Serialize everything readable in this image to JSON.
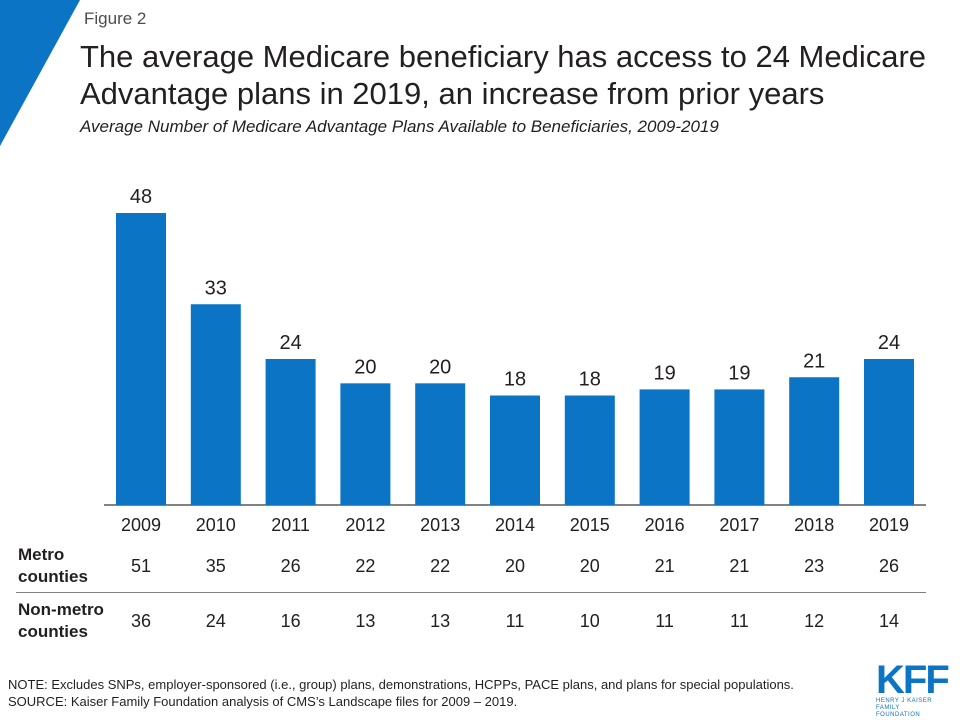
{
  "figure_label": "Figure 2",
  "title": "The average Medicare beneficiary has access to 24 Medicare Advantage plans in 2019, an increase from prior years",
  "subtitle": "Average Number of Medicare Advantage Plans Available to Beneficiaries, 2009-2019",
  "colors": {
    "bar": "#0b74c4",
    "corner": "#0b74c4",
    "axis": "#595959",
    "divider": "#808080"
  },
  "chart_data": {
    "type": "bar",
    "categories": [
      "2009",
      "2010",
      "2011",
      "2012",
      "2013",
      "2014",
      "2015",
      "2016",
      "2017",
      "2018",
      "2019"
    ],
    "values": [
      48,
      33,
      24,
      20,
      20,
      18,
      18,
      19,
      19,
      21,
      24
    ],
    "data_labels": [
      "48",
      "33",
      "24",
      "20",
      "20",
      "18",
      "18",
      "19",
      "19",
      "21",
      "24"
    ],
    "ylim": [
      0,
      48
    ],
    "grid": false,
    "legend": "none"
  },
  "table": {
    "rows": [
      {
        "label_line1": "Metro",
        "label_line2": "counties",
        "values": [
          "51",
          "35",
          "26",
          "22",
          "22",
          "20",
          "20",
          "21",
          "21",
          "23",
          "26"
        ]
      },
      {
        "label_line1": "Non-metro",
        "label_line2": "counties",
        "values": [
          "36",
          "24",
          "16",
          "13",
          "13",
          "11",
          "10",
          "11",
          "11",
          "12",
          "14"
        ]
      }
    ]
  },
  "note": "NOTE: Excludes SNPs, employer-sponsored (i.e., group) plans, demonstrations, HCPPs, PACE plans, and plans for special populations.",
  "source": "SOURCE:  Kaiser Family Foundation analysis of CMS’s Landscape files for 2009 – 2019.",
  "logo": {
    "mark": "KFF",
    "line1": "HENRY J KAISER",
    "line2": "FAMILY FOUNDATION"
  }
}
